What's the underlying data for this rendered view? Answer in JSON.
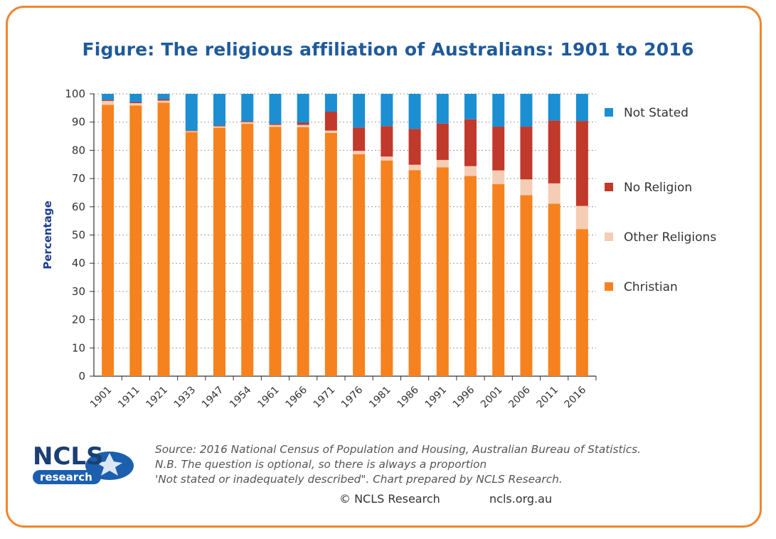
{
  "figure": {
    "title": "Figure: The religious affiliation of Australians: 1901 to 2016",
    "source_lines": [
      "Source: 2016 National Census of Population and Housing, Australian Bureau of Statistics.",
      "N.B. The question is optional, so there is always a proportion",
      "'Not stated or inadequately described\". Chart prepared by NCLS Research."
    ],
    "copyright": "© NCLS Research",
    "website": "ncls.org.au",
    "logo_text": "NCLS",
    "logo_subtext": "research"
  },
  "colors": {
    "christian": "#f5821f",
    "other_religions": "#f5cdb4",
    "no_religion": "#c0392b",
    "not_stated": "#1b8fd2",
    "frame": "#f0852d",
    "title": "#1f5a9a",
    "logo_blue": "#1b5fae"
  },
  "chart_data": {
    "type": "bar",
    "stacked": true,
    "categories": [
      "1901",
      "1911",
      "1921",
      "1933",
      "1947",
      "1954",
      "1961",
      "1966",
      "1971",
      "1976",
      "1981",
      "1986",
      "1991",
      "1996",
      "2001",
      "2006",
      "2011",
      "2016"
    ],
    "series": [
      {
        "name": "Christian",
        "values": [
          96.1,
          95.9,
          96.9,
          86.4,
          88.0,
          89.4,
          88.3,
          88.2,
          86.2,
          78.6,
          76.4,
          73.0,
          74.0,
          70.9,
          68.0,
          64.1,
          61.1,
          52.1
        ]
      },
      {
        "name": "Other Religions",
        "values": [
          1.4,
          0.8,
          0.7,
          0.4,
          0.5,
          0.6,
          0.7,
          0.8,
          0.8,
          1.2,
          1.4,
          1.9,
          2.6,
          3.5,
          4.9,
          5.6,
          7.2,
          8.2
        ]
      },
      {
        "name": "No Religion",
        "values": [
          0.4,
          0.4,
          0.5,
          0.2,
          0.3,
          0.3,
          0.4,
          0.8,
          6.7,
          8.3,
          10.8,
          12.7,
          12.9,
          16.6,
          15.5,
          18.7,
          22.3,
          30.1
        ]
      },
      {
        "name": "Not Stated",
        "values": [
          2.1,
          2.9,
          1.9,
          13.0,
          11.2,
          9.7,
          10.6,
          10.2,
          6.3,
          11.9,
          11.4,
          12.4,
          10.5,
          9.0,
          11.6,
          11.6,
          9.4,
          9.6
        ]
      }
    ],
    "legend_order": [
      "Not Stated",
      "No Religion",
      "Other Religions",
      "Christian"
    ],
    "ylabel": "Percentage",
    "xlabel": "",
    "ylim": [
      0,
      100
    ],
    "yticks": [
      0,
      10,
      20,
      30,
      40,
      50,
      60,
      70,
      80,
      90,
      100
    ],
    "grid": "dotted horizontal",
    "legend_position": "right"
  }
}
